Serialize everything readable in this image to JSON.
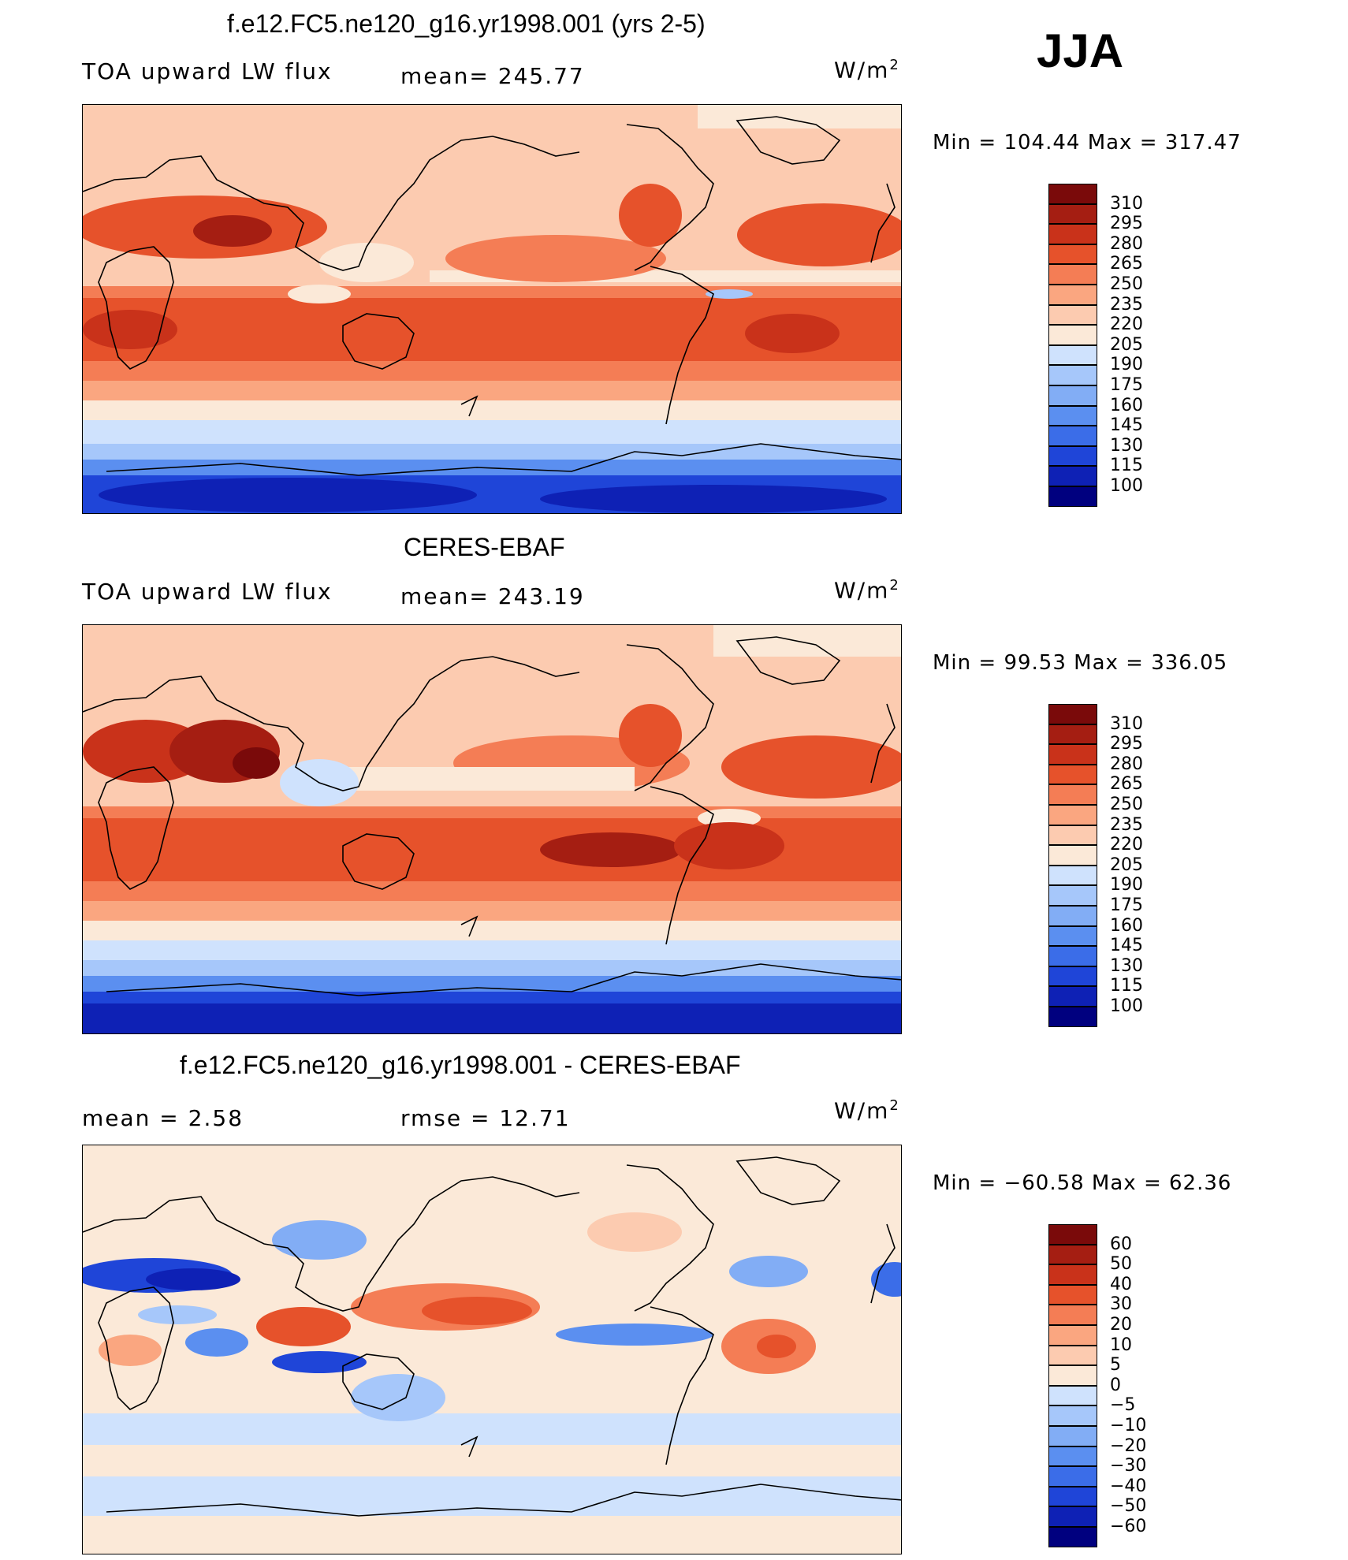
{
  "season": "JJA",
  "colors": {
    "abs": [
      "#00007f",
      "#0e21b5",
      "#1f45d8",
      "#3b6de8",
      "#5b8ff0",
      "#82adf5",
      "#a6c7fa",
      "#cfe2fd",
      "#fbe9d8",
      "#fccbb0",
      "#faa680",
      "#f47d55",
      "#e6522b",
      "#c9321a",
      "#a51e12",
      "#7a0a0a"
    ],
    "diff": [
      "#00007f",
      "#0e21b5",
      "#1f45d8",
      "#3b6de8",
      "#5b8ff0",
      "#82adf5",
      "#a6c7fa",
      "#cfe2fd",
      "#fbe9d8",
      "#fccbb0",
      "#faa680",
      "#f47d55",
      "#e6522b",
      "#c9321a",
      "#a51e12",
      "#7a0a0a"
    ]
  },
  "panels": [
    {
      "title": "f.e12.FC5.ne120_g16.yr1998.001 (yrs 2-5)",
      "left_label": "TOA upward LW flux",
      "mid_label": "mean= 245.77",
      "units": "W/m",
      "units_sup": "2",
      "minmax": "Min = 104.44 Max = 317.47",
      "levels": [
        "310",
        "295",
        "280",
        "265",
        "250",
        "235",
        "220",
        "205",
        "190",
        "175",
        "160",
        "145",
        "130",
        "115",
        "100"
      ]
    },
    {
      "title": "CERES-EBAF",
      "left_label": "TOA upward LW flux",
      "mid_label": "mean= 243.19",
      "units": "W/m",
      "units_sup": "2",
      "minmax": "Min =  99.53 Max = 336.05",
      "levels": [
        "310",
        "295",
        "280",
        "265",
        "250",
        "235",
        "220",
        "205",
        "190",
        "175",
        "160",
        "145",
        "130",
        "115",
        "100"
      ]
    },
    {
      "title": "f.e12.FC5.ne120_g16.yr1998.001 - CERES-EBAF",
      "left_label": "mean =    2.58",
      "mid_label": "rmse =    12.71",
      "units": "W/m",
      "units_sup": "2",
      "minmax": "Min = −60.58 Max =   62.36",
      "levels": [
        "60",
        "50",
        "40",
        "30",
        "20",
        "10",
        "5",
        "0",
        "−5",
        "−10",
        "−20",
        "−30",
        "−40",
        "−50",
        "−60"
      ]
    }
  ]
}
